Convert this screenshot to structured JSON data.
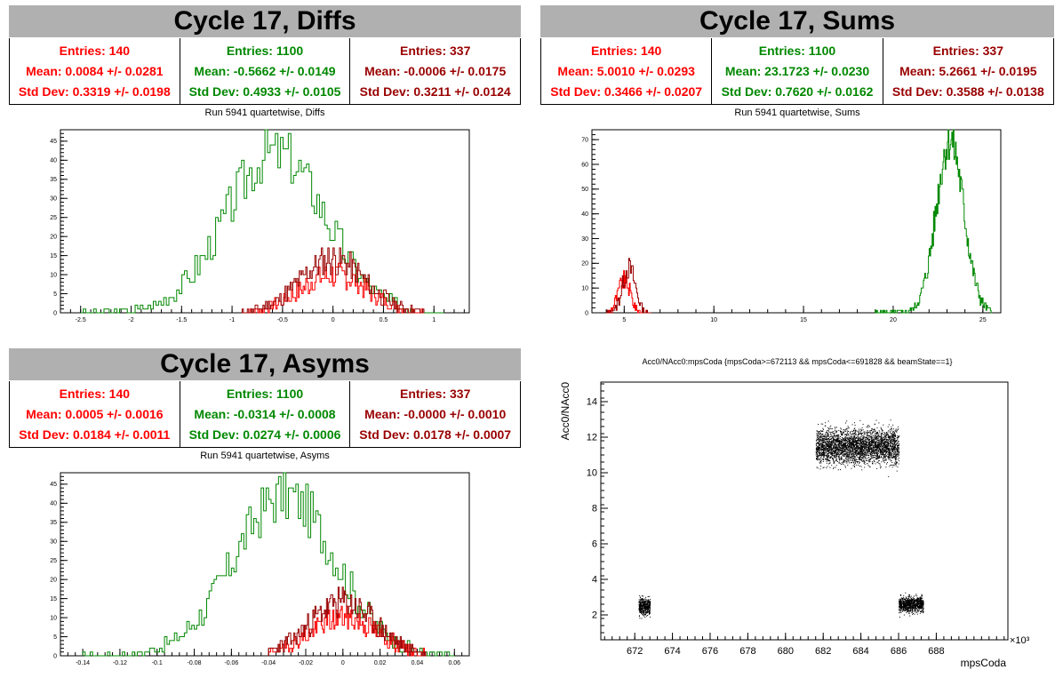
{
  "colors": {
    "c1": "#ff0000",
    "c2": "#008800",
    "c3": "#990000",
    "banner": "#b0b0b0"
  },
  "panels": {
    "diffs": {
      "banner": "Cycle 17, Diffs",
      "stats": [
        {
          "entries": "Entries: 140",
          "mean": "Mean: 0.0084 +/- 0.0281",
          "std": "Std Dev: 0.3319 +/- 0.0198"
        },
        {
          "entries": "Entries: 1100",
          "mean": "Mean: -0.5662 +/- 0.0149",
          "std": "Std Dev: 0.4933 +/- 0.0105"
        },
        {
          "entries": "Entries: 337",
          "mean": "Mean: -0.0006 +/- 0.0175",
          "std": "Std Dev: 0.3211 +/- 0.0124"
        }
      ],
      "plot_title": "Run 5941 quartetwise, Diffs"
    },
    "sums": {
      "banner": "Cycle 17, Sums",
      "stats": [
        {
          "entries": "Entries: 140",
          "mean": "Mean: 5.0010 +/- 0.0293",
          "std": "Std Dev: 0.3466 +/- 0.0207"
        },
        {
          "entries": "Entries: 1100",
          "mean": "Mean: 23.1723 +/- 0.0230",
          "std": "Std Dev: 0.7620 +/- 0.0162"
        },
        {
          "entries": "Entries: 337",
          "mean": "Mean: 5.2661 +/- 0.0195",
          "std": "Std Dev: 0.3588 +/- 0.0138"
        }
      ],
      "plot_title": "Run 5941 quartetwise, Sums"
    },
    "asyms": {
      "banner": "Cycle 17, Asyms",
      "stats": [
        {
          "entries": "Entries: 140",
          "mean": "Mean: 0.0005 +/- 0.0016",
          "std": "Std Dev: 0.0184 +/- 0.0011"
        },
        {
          "entries": "Entries: 1100",
          "mean": "Mean: -0.0314 +/- 0.0008",
          "std": "Std Dev: 0.0274 +/- 0.0006"
        },
        {
          "entries": "Entries: 337",
          "mean": "Mean: -0.0000 +/- 0.0010",
          "std": "Std Dev: 0.0178 +/- 0.0007"
        }
      ],
      "plot_title": "Run 5941 quartetwise, Asyms"
    },
    "scatter": {
      "plot_title": "Acc0/NAcc0:mpsCoda {mpsCoda>=672113 && mpsCoda<=691828 && beamState==1}"
    }
  },
  "chart_data": [
    {
      "id": "diffs",
      "type": "histogram",
      "xlim": [
        -2.7,
        1.35
      ],
      "ylim": [
        0,
        48
      ],
      "xticks": [
        "-2.5",
        "-2",
        "-1.5",
        "-1",
        "-0.5",
        "0",
        "0.5",
        "1"
      ],
      "xtick_values": [
        -2.5,
        -2,
        -1.5,
        -1,
        -0.5,
        0,
        0.5,
        1
      ],
      "yticks": [
        "0",
        "5",
        "10",
        "15",
        "20",
        "25",
        "30",
        "35",
        "40",
        "45"
      ],
      "ytick_values": [
        0,
        5,
        10,
        15,
        20,
        25,
        30,
        35,
        40,
        45
      ],
      "series": [
        {
          "color": "#008800",
          "mean": -0.5662,
          "sigma": 0.4933,
          "peak": 42,
          "xmin": -2.5,
          "xmax": 1.1,
          "bins": 140,
          "seed": 3
        },
        {
          "color": "#ff0000",
          "mean": 0.0084,
          "sigma": 0.3319,
          "peak": 10,
          "xmin": -0.9,
          "xmax": 0.9,
          "bins": 140,
          "seed": 7
        },
        {
          "color": "#990000",
          "mean": -0.0006,
          "sigma": 0.3211,
          "peak": 14,
          "xmin": -0.9,
          "xmax": 0.9,
          "bins": 140,
          "seed": 11
        }
      ]
    },
    {
      "id": "sums",
      "type": "histogram",
      "xlim": [
        3.2,
        26
      ],
      "ylim": [
        0,
        74
      ],
      "xticks": [
        "5",
        "10",
        "15",
        "20",
        "25"
      ],
      "xtick_values": [
        5,
        10,
        15,
        20,
        25
      ],
      "yticks": [
        "0",
        "10",
        "20",
        "30",
        "40",
        "50",
        "60",
        "70"
      ],
      "ytick_values": [
        0,
        10,
        20,
        30,
        40,
        50,
        60,
        70
      ],
      "series": [
        {
          "color": "#008800",
          "mean": 23.1723,
          "sigma": 0.762,
          "peak": 70,
          "xmin": 19.0,
          "xmax": 25.5,
          "bins": 160,
          "seed": 5
        },
        {
          "color": "#ff0000",
          "mean": 5.001,
          "sigma": 0.3466,
          "peak": 13,
          "xmin": 4.0,
          "xmax": 6.3,
          "bins": 50,
          "seed": 9
        },
        {
          "color": "#990000",
          "mean": 5.2661,
          "sigma": 0.3588,
          "peak": 18,
          "xmin": 4.0,
          "xmax": 6.5,
          "bins": 50,
          "seed": 13
        }
      ]
    },
    {
      "id": "asyms",
      "type": "histogram",
      "xlim": [
        -0.152,
        0.068
      ],
      "ylim": [
        0,
        48
      ],
      "xticks": [
        "-0.14",
        "-0.12",
        "-0.1",
        "-0.08",
        "-0.06",
        "-0.04",
        "-0.02",
        "0",
        "0.02",
        "0.04",
        "0.06"
      ],
      "xtick_values": [
        -0.14,
        -0.12,
        -0.1,
        -0.08,
        -0.06,
        -0.04,
        -0.02,
        0,
        0.02,
        0.04,
        0.06
      ],
      "yticks": [
        "0",
        "5",
        "10",
        "15",
        "20",
        "25",
        "30",
        "35",
        "40",
        "45"
      ],
      "ytick_values": [
        0,
        5,
        10,
        15,
        20,
        25,
        30,
        35,
        40,
        45
      ],
      "series": [
        {
          "color": "#008800",
          "mean": -0.0314,
          "sigma": 0.0274,
          "peak": 42,
          "xmin": -0.14,
          "xmax": 0.06,
          "bins": 150,
          "seed": 17
        },
        {
          "color": "#ff0000",
          "mean": 0.0005,
          "sigma": 0.0184,
          "peak": 10,
          "xmin": -0.04,
          "xmax": 0.045,
          "bins": 150,
          "seed": 19
        },
        {
          "color": "#990000",
          "mean": -0.0,
          "sigma": 0.0178,
          "peak": 14,
          "xmin": -0.04,
          "xmax": 0.045,
          "bins": 150,
          "seed": 23
        }
      ]
    },
    {
      "id": "scatter",
      "type": "scatter",
      "xlabel": "mpsCoda",
      "ylabel": "Acc0/NAcc0",
      "x_multiplier": "×10³",
      "xlim": [
        670.2,
        691.8
      ],
      "ylim": [
        0.6,
        15.1
      ],
      "xticks": [
        "672",
        "674",
        "676",
        "678",
        "680",
        "682",
        "684",
        "686",
        "688"
      ],
      "xtick_values": [
        672,
        674,
        676,
        678,
        680,
        682,
        684,
        686,
        688
      ],
      "yticks": [
        "2",
        "4",
        "6",
        "8",
        "10",
        "12",
        "14"
      ],
      "ytick_values": [
        2,
        4,
        6,
        8,
        10,
        12,
        14
      ],
      "clusters": [
        {
          "x": [
            672.2,
            672.8
          ],
          "y_mean": 2.5,
          "y_sigma": 0.3,
          "n": 450
        },
        {
          "x": [
            681.6,
            686.0
          ],
          "y_mean": 11.5,
          "y_sigma": 0.65,
          "n": 3200
        },
        {
          "x": [
            686.0,
            687.3
          ],
          "y_mean": 2.6,
          "y_sigma": 0.28,
          "n": 900
        }
      ]
    }
  ]
}
